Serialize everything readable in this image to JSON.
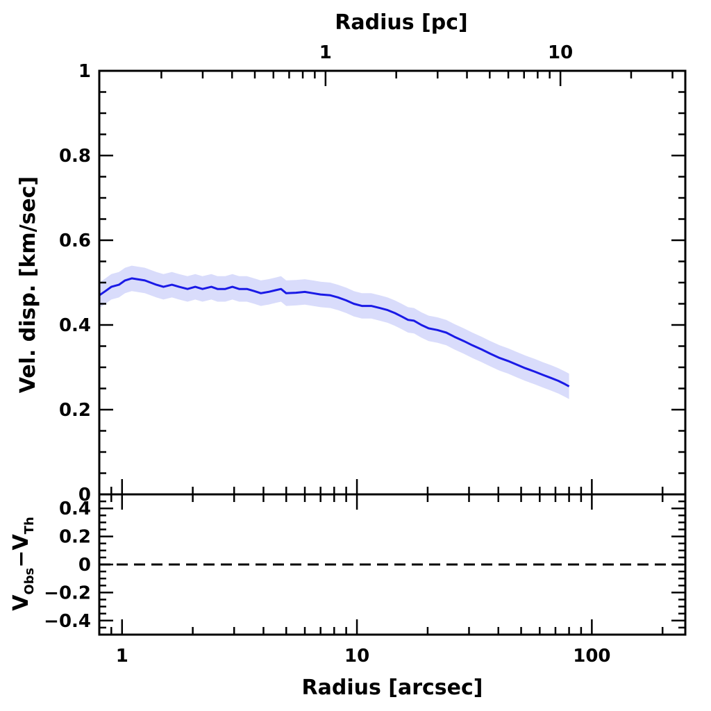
{
  "chart_data": [
    {
      "type": "line",
      "panel": "main",
      "x_scale": "log",
      "xlim": [
        0.8,
        250
      ],
      "ylim": [
        0,
        1
      ],
      "ylabel": "Vel. disp. [km/sec]",
      "top_xlabel": "Radius [pc]",
      "top_xticks": [
        {
          "value": 1,
          "label": "1"
        },
        {
          "value": 10,
          "label": "10"
        }
      ],
      "top_axis_arcsec_per_pc": 7.35,
      "yticks": [
        {
          "value": 0,
          "label": "0"
        },
        {
          "value": 0.2,
          "label": "0.2"
        },
        {
          "value": 0.4,
          "label": "0.4"
        },
        {
          "value": 0.6,
          "label": "0.6"
        },
        {
          "value": 0.8,
          "label": "0.8"
        },
        {
          "value": 1,
          "label": "1"
        }
      ],
      "line_color": "#1a1ae6",
      "band_color": "#d9dcfb",
      "series": [
        {
          "x": [
            0.8,
            0.85,
            0.9,
            0.97,
            1.03,
            1.1,
            1.25,
            1.4,
            1.5,
            1.63,
            1.75,
            1.9,
            2.05,
            2.2,
            2.4,
            2.55,
            2.75,
            2.95,
            3.15,
            3.4,
            3.65,
            3.9,
            4.2,
            4.5,
            4.75,
            5.0,
            5.5,
            6.0,
            6.5,
            7.0,
            7.7,
            8.3,
            9.0,
            9.7,
            10.5,
            11.5,
            12.5,
            13.5,
            14.5,
            15.5,
            16.5,
            17.5,
            18.8,
            20.2,
            22.0,
            24.0,
            26.0,
            28.5,
            31.0,
            34.0,
            37.0,
            40.5,
            44.0,
            48.0,
            52.0,
            57.0,
            62.0,
            67.0,
            72.0,
            77.0,
            80.0
          ],
          "y": [
            0.47,
            0.48,
            0.49,
            0.495,
            0.505,
            0.51,
            0.505,
            0.495,
            0.49,
            0.495,
            0.49,
            0.485,
            0.49,
            0.485,
            0.49,
            0.485,
            0.485,
            0.49,
            0.485,
            0.485,
            0.48,
            0.475,
            0.478,
            0.482,
            0.485,
            0.475,
            0.476,
            0.478,
            0.475,
            0.472,
            0.47,
            0.465,
            0.458,
            0.45,
            0.445,
            0.445,
            0.44,
            0.435,
            0.428,
            0.42,
            0.412,
            0.41,
            0.4,
            0.392,
            0.388,
            0.382,
            0.372,
            0.362,
            0.352,
            0.342,
            0.332,
            0.322,
            0.315,
            0.306,
            0.298,
            0.29,
            0.282,
            0.275,
            0.268,
            0.26,
            0.255
          ],
          "band_half_width": 0.03
        }
      ]
    },
    {
      "type": "line",
      "panel": "residual",
      "x_scale": "log",
      "xlim": [
        0.8,
        250
      ],
      "ylim": [
        -0.5,
        0.5
      ],
      "ylabel_main": "V",
      "ylabel_sub1": "Obs",
      "ylabel_minus": "−V",
      "ylabel_sub2": "Th",
      "xlabel": "Radius [arcsec]",
      "xticks": [
        {
          "value": 1,
          "label": "1"
        },
        {
          "value": 10,
          "label": "10"
        },
        {
          "value": 100,
          "label": "100"
        }
      ],
      "yticks": [
        {
          "value": 0.4,
          "label": "0.4"
        },
        {
          "value": 0.2,
          "label": "0.2"
        },
        {
          "value": 0,
          "label": "0"
        },
        {
          "value": -0.2,
          "label": "−0.2"
        },
        {
          "value": -0.4,
          "label": "−0.4"
        }
      ],
      "reference_line": {
        "value": 0,
        "style": "dashed"
      }
    }
  ]
}
